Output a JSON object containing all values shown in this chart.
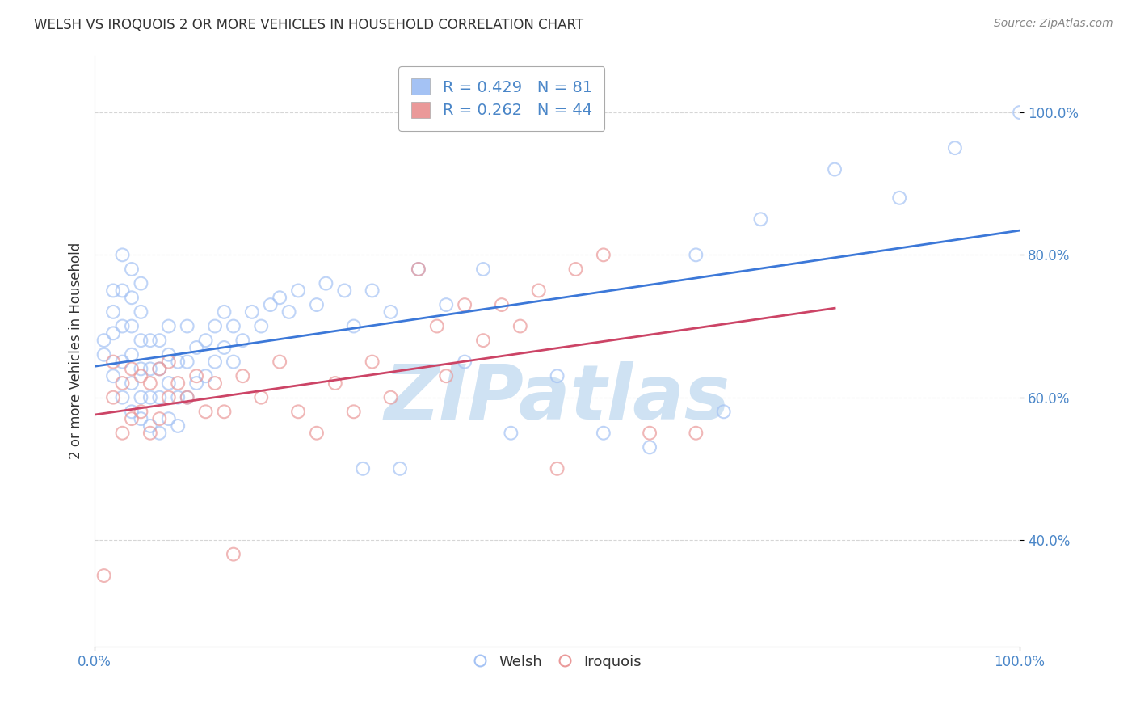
{
  "title": "WELSH VS IROQUOIS 2 OR MORE VEHICLES IN HOUSEHOLD CORRELATION CHART",
  "source": "Source: ZipAtlas.com",
  "ylabel": "2 or more Vehicles in Household",
  "xlim": [
    0.0,
    1.0
  ],
  "ylim": [
    0.25,
    1.08
  ],
  "welsh_R": 0.429,
  "welsh_N": 81,
  "iroquois_R": 0.262,
  "iroquois_N": 44,
  "welsh_color": "#a4c2f4",
  "iroquois_color": "#ea9999",
  "welsh_edge_color": "#6d9eeb",
  "iroquois_edge_color": "#e06666",
  "welsh_line_color": "#3c78d8",
  "iroquois_line_color": "#cc4466",
  "background_color": "#ffffff",
  "watermark_color": "#cfe2f3",
  "welsh_x": [
    0.01,
    0.01,
    0.02,
    0.02,
    0.02,
    0.02,
    0.03,
    0.03,
    0.03,
    0.03,
    0.03,
    0.04,
    0.04,
    0.04,
    0.04,
    0.04,
    0.04,
    0.05,
    0.05,
    0.05,
    0.05,
    0.05,
    0.05,
    0.06,
    0.06,
    0.06,
    0.06,
    0.07,
    0.07,
    0.07,
    0.07,
    0.08,
    0.08,
    0.08,
    0.08,
    0.09,
    0.09,
    0.09,
    0.1,
    0.1,
    0.1,
    0.11,
    0.11,
    0.12,
    0.12,
    0.13,
    0.13,
    0.14,
    0.14,
    0.15,
    0.15,
    0.16,
    0.17,
    0.18,
    0.19,
    0.2,
    0.21,
    0.22,
    0.24,
    0.25,
    0.27,
    0.28,
    0.29,
    0.3,
    0.32,
    0.33,
    0.35,
    0.38,
    0.4,
    0.42,
    0.45,
    0.5,
    0.55,
    0.6,
    0.65,
    0.68,
    0.72,
    0.8,
    0.87,
    0.93,
    1.0
  ],
  "welsh_y": [
    0.66,
    0.68,
    0.63,
    0.69,
    0.72,
    0.75,
    0.6,
    0.65,
    0.7,
    0.75,
    0.8,
    0.58,
    0.62,
    0.66,
    0.7,
    0.74,
    0.78,
    0.57,
    0.6,
    0.64,
    0.68,
    0.72,
    0.76,
    0.56,
    0.6,
    0.64,
    0.68,
    0.55,
    0.6,
    0.64,
    0.68,
    0.57,
    0.62,
    0.66,
    0.7,
    0.56,
    0.6,
    0.65,
    0.6,
    0.65,
    0.7,
    0.62,
    0.67,
    0.63,
    0.68,
    0.65,
    0.7,
    0.67,
    0.72,
    0.65,
    0.7,
    0.68,
    0.72,
    0.7,
    0.73,
    0.74,
    0.72,
    0.75,
    0.73,
    0.76,
    0.75,
    0.7,
    0.5,
    0.75,
    0.72,
    0.5,
    0.78,
    0.73,
    0.65,
    0.78,
    0.55,
    0.63,
    0.55,
    0.53,
    0.8,
    0.58,
    0.85,
    0.92,
    0.88,
    0.95,
    1.0
  ],
  "iroquois_x": [
    0.01,
    0.02,
    0.02,
    0.03,
    0.03,
    0.04,
    0.04,
    0.05,
    0.05,
    0.06,
    0.06,
    0.07,
    0.07,
    0.08,
    0.08,
    0.09,
    0.1,
    0.11,
    0.12,
    0.13,
    0.14,
    0.15,
    0.16,
    0.18,
    0.2,
    0.22,
    0.24,
    0.26,
    0.28,
    0.3,
    0.32,
    0.35,
    0.37,
    0.38,
    0.4,
    0.42,
    0.44,
    0.46,
    0.48,
    0.5,
    0.52,
    0.55,
    0.6,
    0.65
  ],
  "iroquois_y": [
    0.35,
    0.6,
    0.65,
    0.55,
    0.62,
    0.57,
    0.64,
    0.58,
    0.63,
    0.55,
    0.62,
    0.57,
    0.64,
    0.6,
    0.65,
    0.62,
    0.6,
    0.63,
    0.58,
    0.62,
    0.58,
    0.38,
    0.63,
    0.6,
    0.65,
    0.58,
    0.55,
    0.62,
    0.58,
    0.65,
    0.6,
    0.78,
    0.7,
    0.63,
    0.73,
    0.68,
    0.73,
    0.7,
    0.75,
    0.5,
    0.78,
    0.8,
    0.55,
    0.55
  ]
}
